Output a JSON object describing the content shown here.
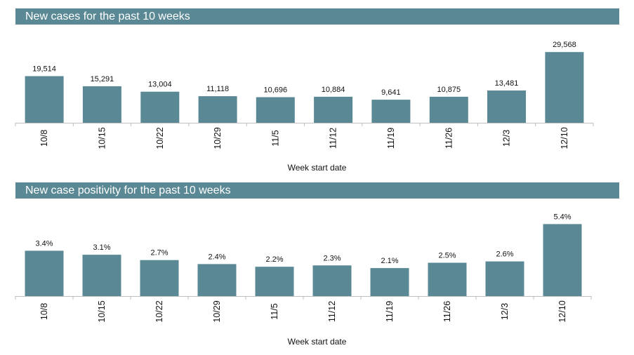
{
  "theme": {
    "accent": "#5a8894",
    "text": "#111111"
  },
  "chart_data": [
    {
      "type": "bar",
      "title": "New cases for the past 10 weeks",
      "xlabel": "Week start date",
      "ylabel": "",
      "categories": [
        "10/8",
        "10/15",
        "10/22",
        "10/29",
        "11/5",
        "11/12",
        "11/19",
        "11/26",
        "12/3",
        "12/10"
      ],
      "values": [
        19514,
        15291,
        13004,
        11118,
        10696,
        10884,
        9641,
        10875,
        13481,
        29568
      ],
      "value_labels": [
        "19,514",
        "15,291",
        "13,004",
        "11,118",
        "10,696",
        "10,884",
        "9,641",
        "10,875",
        "13,481",
        "29,568"
      ],
      "ylim": [
        0,
        39000
      ],
      "grid": false,
      "color": "#5a8894"
    },
    {
      "type": "bar",
      "title": "New case positivity for the past 10 weeks",
      "xlabel": "Week start date",
      "ylabel": "",
      "categories": [
        "10/8",
        "10/15",
        "10/22",
        "10/29",
        "11/5",
        "11/12",
        "11/19",
        "11/26",
        "12/3",
        "12/10"
      ],
      "values": [
        3.4,
        3.1,
        2.7,
        2.4,
        2.2,
        2.3,
        2.1,
        2.5,
        2.6,
        5.4
      ],
      "value_labels": [
        "3.4%",
        "3.1%",
        "2.7%",
        "2.4%",
        "2.2%",
        "2.3%",
        "2.1%",
        "2.5%",
        "2.6%",
        "5.4%"
      ],
      "ylim": [
        0,
        7.0
      ],
      "grid": false,
      "color": "#5a8894"
    }
  ]
}
